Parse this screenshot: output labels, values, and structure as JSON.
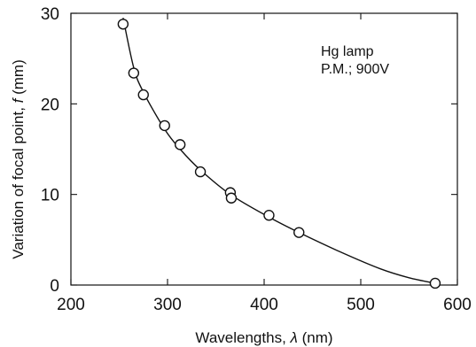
{
  "chart_data": {
    "type": "scatter",
    "xlabel_prefix": "Wavelengths, ",
    "xlabel_symbol": "λ",
    "xlabel_suffix": " (nm)",
    "ylabel_prefix": "Variation of  focal point, ",
    "ylabel_symbol": "f",
    "ylabel_suffix": " (mm)",
    "xlim": [
      200,
      600
    ],
    "ylim": [
      0,
      30
    ],
    "xticks": [
      200,
      300,
      400,
      500,
      600
    ],
    "yticks": [
      0,
      10,
      20,
      30
    ],
    "x_tick_labels": [
      "200",
      "300",
      "400",
      "500",
      "600"
    ],
    "y_tick_labels": [
      "0",
      "10",
      "20",
      "30"
    ],
    "annotations": [
      "Hg lamp",
      "P.M.; 900V"
    ],
    "series": [
      {
        "marker": "circle",
        "x": [
          254,
          265,
          275,
          297,
          313,
          334,
          365,
          366,
          405,
          436,
          577
        ],
        "y": [
          28.8,
          23.4,
          21.0,
          17.6,
          15.5,
          12.5,
          10.2,
          9.6,
          7.7,
          5.8,
          0.2
        ]
      }
    ],
    "fit_curve": {
      "x": [
        254,
        265,
        275,
        297,
        313,
        334,
        365,
        405,
        436,
        480,
        520,
        550,
        577
      ],
      "y": [
        29.5,
        24.0,
        21.3,
        17.2,
        15.0,
        12.7,
        10.0,
        7.5,
        5.8,
        3.6,
        1.8,
        0.8,
        0.2
      ]
    }
  }
}
